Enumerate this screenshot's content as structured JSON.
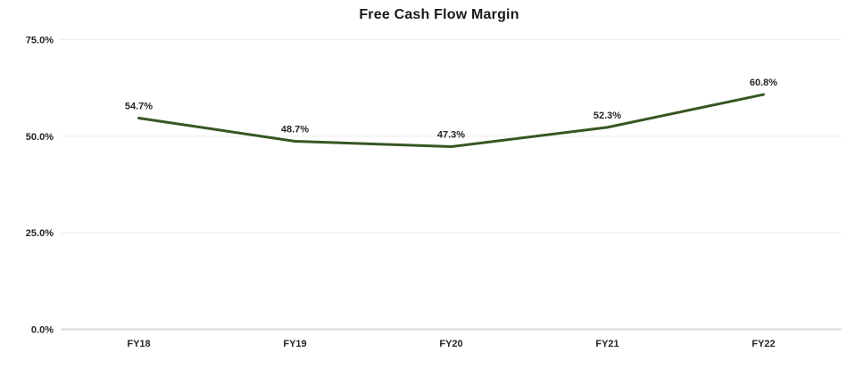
{
  "chart_data": {
    "type": "line",
    "title": "Free Cash Flow Margin",
    "categories": [
      "FY18",
      "FY19",
      "FY20",
      "FY21",
      "FY22"
    ],
    "series": [
      {
        "name": "Free Cash Flow Margin",
        "values": [
          54.7,
          48.7,
          47.3,
          52.3,
          60.8
        ]
      }
    ],
    "data_labels": [
      "54.7%",
      "48.7%",
      "47.3%",
      "52.3%",
      "60.8%"
    ],
    "y_ticks": [
      {
        "value": 0,
        "label": "0.0%"
      },
      {
        "value": 25,
        "label": "25.0%"
      },
      {
        "value": 50,
        "label": "50.0%"
      },
      {
        "value": 75,
        "label": "75.0%"
      }
    ],
    "ylim": [
      0,
      75
    ],
    "grid": true,
    "legend": "none",
    "colors": {
      "line": "#375623",
      "gridline": "#ececec",
      "baseline": "#d9d9d9",
      "text": "#262626",
      "background": "#ffffff"
    }
  }
}
